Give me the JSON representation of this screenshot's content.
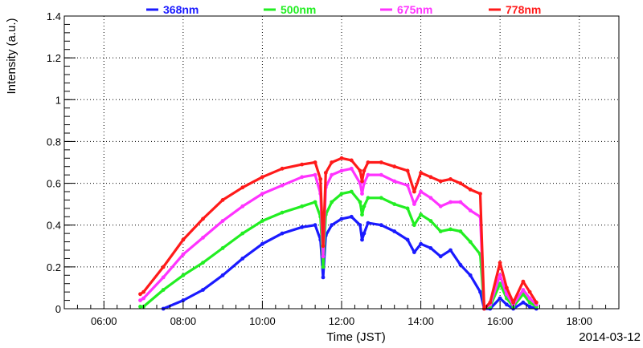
{
  "chart_data": {
    "type": "scatter",
    "title": "",
    "xlabel": "Time (JST)",
    "ylabel": "Intensity (a.u.)",
    "date_label": "2014-03-12",
    "xlim": [
      "05:00",
      "19:00"
    ],
    "ylim": [
      0,
      1.4
    ],
    "x_ticks": [
      "06:00",
      "08:00",
      "10:00",
      "12:00",
      "14:00",
      "16:00",
      "18:00"
    ],
    "y_ticks": [
      "0",
      "0.2",
      "0.4",
      "0.6",
      "0.8",
      "1",
      "1.2",
      "1.4"
    ],
    "grid": true,
    "legend_position": "top",
    "series": [
      {
        "name": "368nm",
        "color": "#1a1aff",
        "points": [
          [
            "07:30",
            0.0
          ],
          [
            "08:00",
            0.04
          ],
          [
            "08:30",
            0.09
          ],
          [
            "09:00",
            0.16
          ],
          [
            "09:30",
            0.24
          ],
          [
            "10:00",
            0.31
          ],
          [
            "10:30",
            0.36
          ],
          [
            "11:00",
            0.39
          ],
          [
            "11:20",
            0.4
          ],
          [
            "11:28",
            0.33
          ],
          [
            "11:32",
            0.15
          ],
          [
            "11:36",
            0.35
          ],
          [
            "11:45",
            0.4
          ],
          [
            "12:00",
            0.43
          ],
          [
            "12:15",
            0.44
          ],
          [
            "12:28",
            0.4
          ],
          [
            "12:31",
            0.33
          ],
          [
            "12:34",
            0.36
          ],
          [
            "12:40",
            0.41
          ],
          [
            "13:00",
            0.4
          ],
          [
            "13:20",
            0.37
          ],
          [
            "13:40",
            0.33
          ],
          [
            "13:50",
            0.27
          ],
          [
            "14:00",
            0.31
          ],
          [
            "14:15",
            0.29
          ],
          [
            "14:30",
            0.25
          ],
          [
            "14:45",
            0.28
          ],
          [
            "15:00",
            0.21
          ],
          [
            "15:15",
            0.16
          ],
          [
            "15:30",
            0.08
          ],
          [
            "15:36",
            0.0
          ],
          [
            "15:45",
            0.0
          ],
          [
            "16:00",
            0.05
          ],
          [
            "16:10",
            0.02
          ],
          [
            "16:20",
            0.0
          ],
          [
            "16:35",
            0.03
          ],
          [
            "16:45",
            0.01
          ],
          [
            "16:55",
            0.0
          ]
        ]
      },
      {
        "name": "500nm",
        "color": "#22ee22",
        "points": [
          [
            "06:55",
            0.01
          ],
          [
            "07:00",
            0.01
          ],
          [
            "07:30",
            0.09
          ],
          [
            "08:00",
            0.16
          ],
          [
            "08:30",
            0.22
          ],
          [
            "09:00",
            0.29
          ],
          [
            "09:30",
            0.36
          ],
          [
            "10:00",
            0.42
          ],
          [
            "10:30",
            0.46
          ],
          [
            "11:00",
            0.49
          ],
          [
            "11:20",
            0.51
          ],
          [
            "11:28",
            0.44
          ],
          [
            "11:32",
            0.2
          ],
          [
            "11:36",
            0.45
          ],
          [
            "11:45",
            0.51
          ],
          [
            "12:00",
            0.55
          ],
          [
            "12:15",
            0.56
          ],
          [
            "12:28",
            0.51
          ],
          [
            "12:31",
            0.45
          ],
          [
            "12:34",
            0.49
          ],
          [
            "12:40",
            0.53
          ],
          [
            "13:00",
            0.53
          ],
          [
            "13:20",
            0.5
          ],
          [
            "13:40",
            0.48
          ],
          [
            "13:50",
            0.4
          ],
          [
            "14:00",
            0.45
          ],
          [
            "14:15",
            0.42
          ],
          [
            "14:30",
            0.37
          ],
          [
            "14:45",
            0.38
          ],
          [
            "15:00",
            0.37
          ],
          [
            "15:15",
            0.32
          ],
          [
            "15:30",
            0.26
          ],
          [
            "15:36",
            0.0
          ],
          [
            "15:45",
            0.01
          ],
          [
            "16:00",
            0.12
          ],
          [
            "16:10",
            0.05
          ],
          [
            "16:20",
            0.01
          ],
          [
            "16:35",
            0.07
          ],
          [
            "16:45",
            0.03
          ],
          [
            "16:55",
            0.01
          ]
        ]
      },
      {
        "name": "675nm",
        "color": "#ff33ff",
        "points": [
          [
            "06:55",
            0.04
          ],
          [
            "07:00",
            0.05
          ],
          [
            "07:30",
            0.15
          ],
          [
            "08:00",
            0.26
          ],
          [
            "08:30",
            0.34
          ],
          [
            "09:00",
            0.42
          ],
          [
            "09:30",
            0.49
          ],
          [
            "10:00",
            0.55
          ],
          [
            "10:30",
            0.59
          ],
          [
            "11:00",
            0.63
          ],
          [
            "11:20",
            0.64
          ],
          [
            "11:28",
            0.55
          ],
          [
            "11:32",
            0.25
          ],
          [
            "11:36",
            0.58
          ],
          [
            "11:45",
            0.64
          ],
          [
            "12:00",
            0.66
          ],
          [
            "12:15",
            0.67
          ],
          [
            "12:28",
            0.6
          ],
          [
            "12:31",
            0.55
          ],
          [
            "12:34",
            0.6
          ],
          [
            "12:40",
            0.64
          ],
          [
            "13:00",
            0.64
          ],
          [
            "13:20",
            0.61
          ],
          [
            "13:40",
            0.59
          ],
          [
            "13:50",
            0.5
          ],
          [
            "14:00",
            0.56
          ],
          [
            "14:15",
            0.53
          ],
          [
            "14:30",
            0.49
          ],
          [
            "14:45",
            0.51
          ],
          [
            "15:00",
            0.51
          ],
          [
            "15:15",
            0.47
          ],
          [
            "15:30",
            0.44
          ],
          [
            "15:36",
            0.0
          ],
          [
            "15:45",
            0.02
          ],
          [
            "16:00",
            0.16
          ],
          [
            "16:10",
            0.07
          ],
          [
            "16:20",
            0.02
          ],
          [
            "16:35",
            0.09
          ],
          [
            "16:45",
            0.05
          ],
          [
            "16:55",
            0.02
          ]
        ]
      },
      {
        "name": "778nm",
        "color": "#ff1a1a",
        "points": [
          [
            "06:55",
            0.07
          ],
          [
            "07:00",
            0.08
          ],
          [
            "07:30",
            0.2
          ],
          [
            "08:00",
            0.33
          ],
          [
            "08:30",
            0.43
          ],
          [
            "09:00",
            0.52
          ],
          [
            "09:30",
            0.58
          ],
          [
            "10:00",
            0.63
          ],
          [
            "10:30",
            0.67
          ],
          [
            "11:00",
            0.69
          ],
          [
            "11:20",
            0.7
          ],
          [
            "11:28",
            0.62
          ],
          [
            "11:32",
            0.3
          ],
          [
            "11:36",
            0.65
          ],
          [
            "11:45",
            0.7
          ],
          [
            "12:00",
            0.72
          ],
          [
            "12:15",
            0.71
          ],
          [
            "12:28",
            0.66
          ],
          [
            "12:31",
            0.61
          ],
          [
            "12:34",
            0.66
          ],
          [
            "12:40",
            0.7
          ],
          [
            "13:00",
            0.7
          ],
          [
            "13:20",
            0.68
          ],
          [
            "13:40",
            0.66
          ],
          [
            "13:50",
            0.56
          ],
          [
            "14:00",
            0.65
          ],
          [
            "14:15",
            0.63
          ],
          [
            "14:30",
            0.61
          ],
          [
            "14:45",
            0.62
          ],
          [
            "15:00",
            0.6
          ],
          [
            "15:15",
            0.57
          ],
          [
            "15:30",
            0.55
          ],
          [
            "15:36",
            0.0
          ],
          [
            "15:45",
            0.03
          ],
          [
            "16:00",
            0.22
          ],
          [
            "16:10",
            0.1
          ],
          [
            "16:20",
            0.03
          ],
          [
            "16:35",
            0.13
          ],
          [
            "16:45",
            0.08
          ],
          [
            "16:55",
            0.03
          ]
        ]
      }
    ]
  }
}
